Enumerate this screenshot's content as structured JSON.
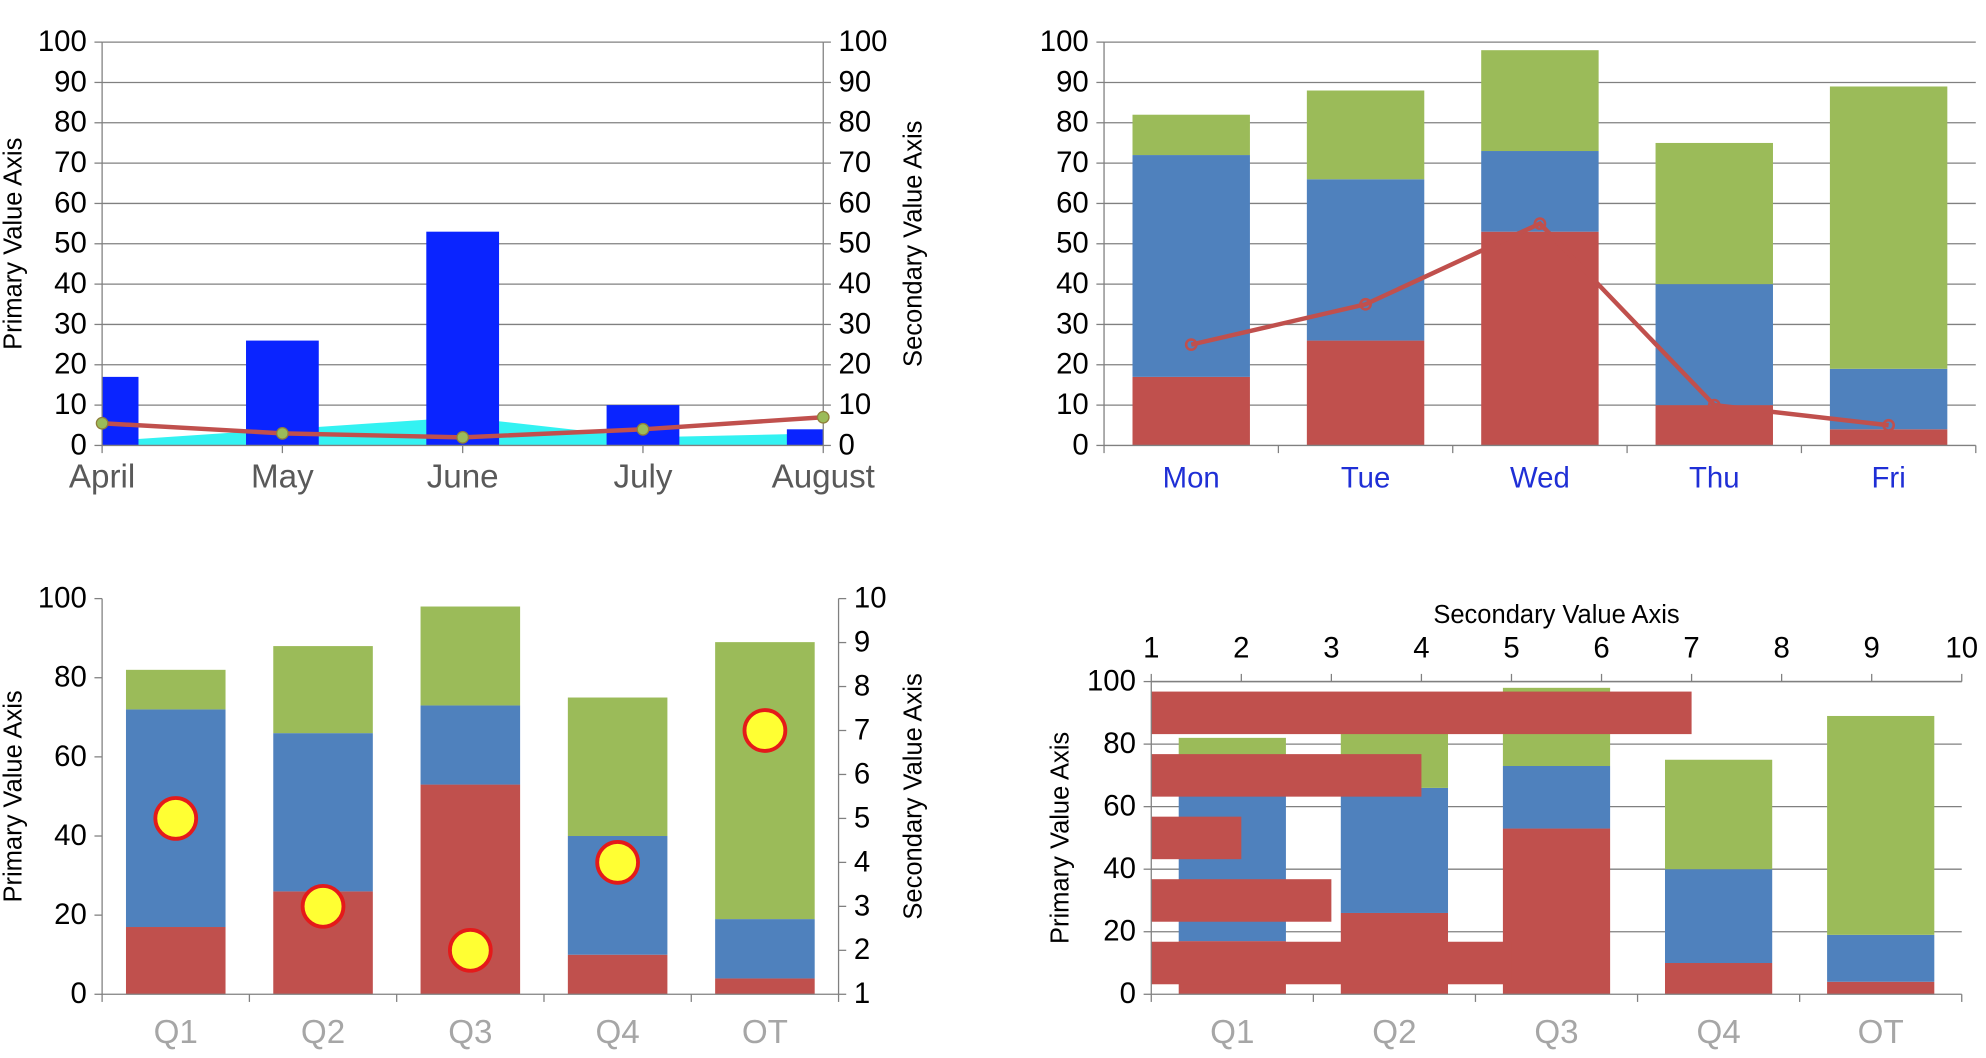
{
  "colors": {
    "red": "#C0504D",
    "blue": "#4F81BD",
    "green": "#9BBB59",
    "bright_blue": "#0A24FF",
    "cyan": "#33F2F2",
    "line_red": "#C0504D",
    "marker_olive": "#9BBB59",
    "bubble_fill": "#FFFF33",
    "bubble_edge": "#E41A1A",
    "grid": "#808080",
    "day_label": "#1F2FD6"
  },
  "chart_data": [
    {
      "type": "bar",
      "categories": [
        "April",
        "May",
        "June",
        "July",
        "August"
      ],
      "ylabel": "Primary Value Axis",
      "y2label": "Secondary Value Axis",
      "ylim": [
        0,
        100
      ],
      "y2lim": [
        0,
        100
      ],
      "yticks": [
        "0",
        "10",
        "20",
        "30",
        "40",
        "50",
        "60",
        "70",
        "80",
        "90",
        "100"
      ],
      "y2ticks": [
        "0",
        "10",
        "20",
        "30",
        "40",
        "50",
        "60",
        "70",
        "80",
        "90",
        "100"
      ],
      "series": [
        {
          "type": "bar",
          "values": [
            17,
            26,
            53,
            10,
            4
          ]
        },
        {
          "type": "area",
          "values": [
            1,
            4,
            7,
            2,
            3
          ]
        },
        {
          "type": "line",
          "axis": "secondary",
          "values": [
            5.5,
            3,
            2,
            4,
            7
          ]
        }
      ],
      "grid": true
    },
    {
      "type": "bar",
      "stacked": true,
      "categories": [
        "Mon",
        "Tue",
        "Wed",
        "Thu",
        "Fri"
      ],
      "ylim": [
        0,
        100
      ],
      "yticks": [
        "0",
        "10",
        "20",
        "30",
        "40",
        "50",
        "60",
        "70",
        "80",
        "90",
        "100"
      ],
      "series": [
        {
          "type": "bar",
          "values": [
            17,
            26,
            53,
            10,
            4
          ]
        },
        {
          "type": "bar",
          "values": [
            55,
            40,
            20,
            30,
            15
          ]
        },
        {
          "type": "bar",
          "values": [
            10,
            22,
            25,
            35,
            70
          ]
        },
        {
          "type": "line",
          "values": [
            25,
            35,
            55,
            10,
            5
          ]
        }
      ],
      "grid": true
    },
    {
      "type": "bar",
      "stacked": true,
      "categories": [
        "Q1",
        "Q2",
        "Q3",
        "Q4",
        "OT"
      ],
      "ylabel": "Primary Value Axis",
      "y2label": "Secondary Value Axis",
      "ylim": [
        0,
        100
      ],
      "y2lim": [
        1,
        10
      ],
      "yticks": [
        "0",
        "20",
        "40",
        "60",
        "80",
        "100"
      ],
      "y2ticks": [
        "1",
        "2",
        "3",
        "4",
        "5",
        "6",
        "7",
        "8",
        "9",
        "10"
      ],
      "series": [
        {
          "type": "bar",
          "values": [
            17,
            26,
            53,
            10,
            4
          ]
        },
        {
          "type": "bar",
          "values": [
            55,
            40,
            20,
            30,
            15
          ]
        },
        {
          "type": "bar",
          "values": [
            10,
            22,
            25,
            35,
            70
          ]
        },
        {
          "type": "scatter",
          "axis": "secondary",
          "values": [
            5,
            3,
            2,
            4,
            7
          ]
        }
      ],
      "grid": false
    },
    {
      "type": "bar",
      "stacked": true,
      "categories": [
        "Q1",
        "Q2",
        "Q3",
        "Q4",
        "OT"
      ],
      "ylabel": "Primary Value Axis",
      "x2label": "Secondary Value Axis",
      "ylim": [
        0,
        100
      ],
      "x2lim": [
        1,
        10
      ],
      "yticks": [
        "0",
        "20",
        "40",
        "60",
        "80",
        "100"
      ],
      "x2ticks": [
        "1",
        "2",
        "3",
        "4",
        "5",
        "6",
        "7",
        "8",
        "9",
        "10"
      ],
      "series": [
        {
          "type": "bar",
          "values": [
            17,
            26,
            53,
            10,
            4
          ]
        },
        {
          "type": "bar",
          "values": [
            55,
            40,
            20,
            30,
            15
          ]
        },
        {
          "type": "bar",
          "values": [
            10,
            22,
            25,
            35,
            70
          ]
        },
        {
          "type": "hbar",
          "axis": "secondary",
          "values": [
            5,
            3,
            2,
            4,
            7
          ]
        }
      ],
      "grid": true
    }
  ]
}
